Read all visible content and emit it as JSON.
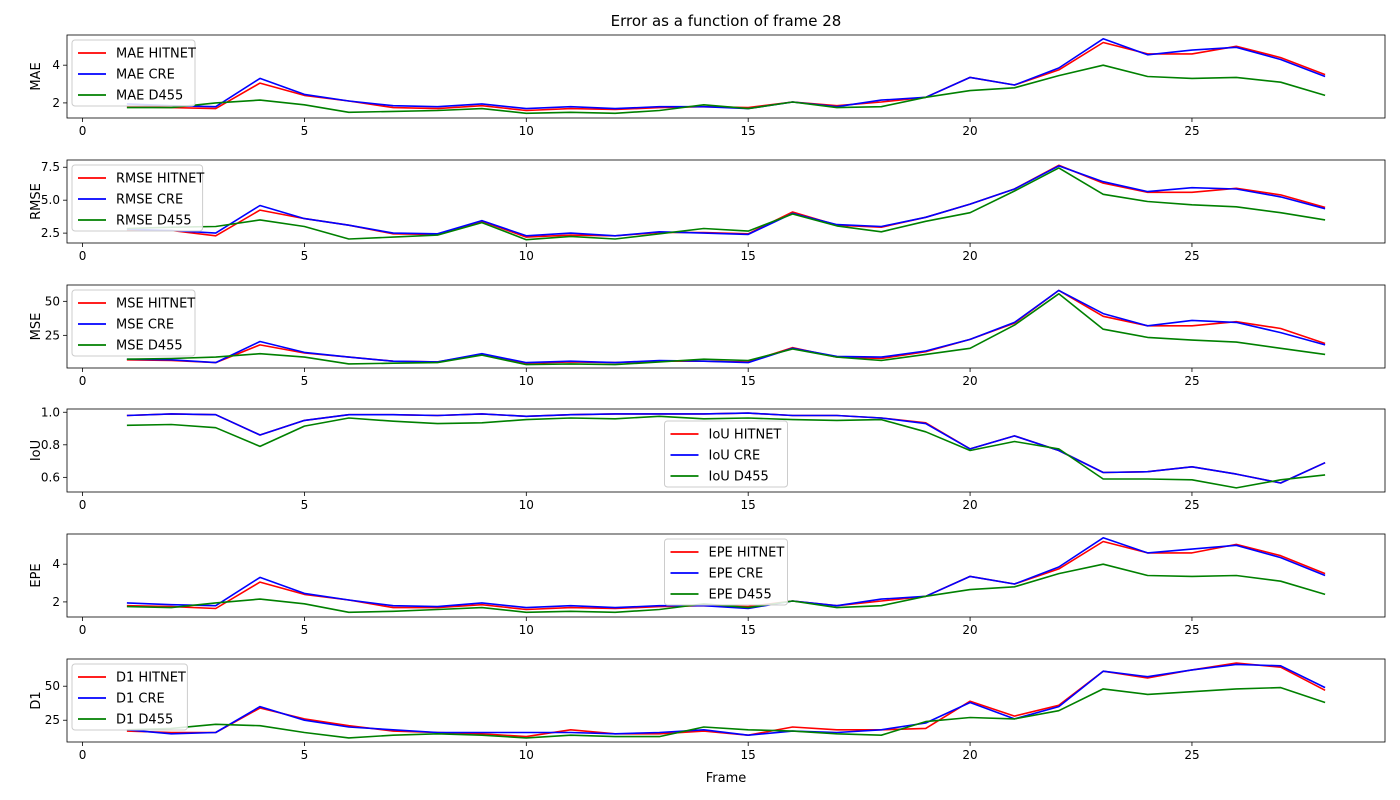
{
  "figure_title": "Error as a function of frame 28",
  "xlabel": "Frame",
  "colors": {
    "HITNET": "#ff0000",
    "CRE": "#0000ff",
    "D455": "#008000"
  },
  "chart_data": [
    {
      "type": "line",
      "ylabel": "MAE",
      "x": [
        1,
        2,
        3,
        4,
        5,
        6,
        7,
        8,
        9,
        10,
        11,
        12,
        13,
        14,
        15,
        16,
        17,
        18,
        19,
        20,
        21,
        22,
        23,
        24,
        25,
        26,
        27,
        28
      ],
      "xlim": [
        -0.35,
        29.35
      ],
      "ylim": [
        1.2,
        5.6
      ],
      "yticks": [
        2,
        4
      ],
      "xticks": [
        0,
        5,
        10,
        15,
        20,
        25
      ],
      "legend": "upper-left",
      "series": [
        {
          "name": "MAE HITNET",
          "color": "#ff0000",
          "values": [
            1.8,
            1.75,
            1.7,
            3.05,
            2.4,
            2.1,
            1.75,
            1.7,
            1.85,
            1.6,
            1.7,
            1.65,
            1.75,
            1.8,
            1.75,
            2.05,
            1.85,
            2.05,
            2.3,
            3.35,
            2.95,
            3.75,
            5.2,
            4.6,
            4.6,
            5.0,
            4.4,
            3.5
          ]
        },
        {
          "name": "MAE CRE",
          "color": "#0000ff",
          "values": [
            1.95,
            1.85,
            1.8,
            3.3,
            2.45,
            2.1,
            1.85,
            1.8,
            1.95,
            1.7,
            1.8,
            1.7,
            1.8,
            1.8,
            1.7,
            2.05,
            1.8,
            2.15,
            2.3,
            3.35,
            2.95,
            3.85,
            5.4,
            4.55,
            4.8,
            4.95,
            4.3,
            3.4
          ]
        },
        {
          "name": "MAE D455",
          "color": "#008000",
          "values": [
            1.75,
            1.75,
            2.0,
            2.15,
            1.9,
            1.5,
            1.55,
            1.6,
            1.7,
            1.45,
            1.5,
            1.45,
            1.6,
            1.9,
            1.7,
            2.05,
            1.75,
            1.8,
            2.3,
            2.65,
            2.8,
            3.45,
            4.0,
            3.4,
            3.3,
            3.35,
            3.1,
            2.4
          ]
        }
      ]
    },
    {
      "type": "line",
      "ylabel": "RMSE",
      "x": [
        1,
        2,
        3,
        4,
        5,
        6,
        7,
        8,
        9,
        10,
        11,
        12,
        13,
        14,
        15,
        16,
        17,
        18,
        19,
        20,
        21,
        22,
        23,
        24,
        25,
        26,
        27,
        28
      ],
      "xlim": [
        -0.35,
        29.35
      ],
      "ylim": [
        1.75,
        8.05
      ],
      "yticks": [
        2.5,
        5.0,
        7.5
      ],
      "ytick_labels": [
        "2.5",
        "5.0",
        "7.5"
      ],
      "xticks": [
        0,
        5,
        10,
        15,
        20,
        25
      ],
      "legend": "upper-left",
      "series": [
        {
          "name": "RMSE HITNET",
          "color": "#ff0000",
          "values": [
            2.7,
            2.7,
            2.3,
            4.25,
            3.6,
            3.1,
            2.45,
            2.4,
            3.4,
            2.2,
            2.35,
            2.3,
            2.55,
            2.55,
            2.45,
            4.1,
            3.1,
            2.95,
            3.7,
            4.7,
            5.85,
            7.65,
            6.3,
            5.6,
            5.6,
            5.9,
            5.4,
            4.45
          ]
        },
        {
          "name": "RMSE CRE",
          "color": "#0000ff",
          "values": [
            2.8,
            2.7,
            2.5,
            4.6,
            3.6,
            3.1,
            2.5,
            2.45,
            3.45,
            2.3,
            2.5,
            2.3,
            2.6,
            2.5,
            2.4,
            4.0,
            3.15,
            3.0,
            3.7,
            4.7,
            5.85,
            7.6,
            6.4,
            5.65,
            5.95,
            5.85,
            5.25,
            4.35
          ]
        },
        {
          "name": "RMSE D455",
          "color": "#008000",
          "values": [
            2.85,
            2.95,
            3.0,
            3.5,
            3.0,
            2.05,
            2.2,
            2.35,
            3.3,
            2.0,
            2.25,
            2.05,
            2.45,
            2.85,
            2.65,
            3.95,
            3.05,
            2.6,
            3.4,
            4.05,
            5.7,
            7.45,
            5.45,
            4.9,
            4.65,
            4.5,
            4.05,
            3.5
          ]
        }
      ]
    },
    {
      "type": "line",
      "ylabel": "MSE",
      "x": [
        1,
        2,
        3,
        4,
        5,
        6,
        7,
        8,
        9,
        10,
        11,
        12,
        13,
        14,
        15,
        16,
        17,
        18,
        19,
        20,
        21,
        22,
        23,
        24,
        25,
        26,
        27,
        28
      ],
      "xlim": [
        -0.35,
        29.35
      ],
      "ylim": [
        1,
        62
      ],
      "yticks": [
        25,
        50
      ],
      "xticks": [
        0,
        5,
        10,
        15,
        20,
        25
      ],
      "legend": "upper-left",
      "series": [
        {
          "name": "MSE HITNET",
          "color": "#ff0000",
          "values": [
            7,
            6.5,
            5,
            18,
            12,
            9,
            6,
            5.5,
            11,
            4.5,
            5.5,
            5,
            6,
            6,
            5.5,
            16,
            9,
            8,
            13,
            22,
            34,
            58,
            39,
            32,
            32,
            35,
            30,
            19
          ]
        },
        {
          "name": "MSE CRE",
          "color": "#0000ff",
          "values": [
            7.5,
            7,
            5,
            20.5,
            12.5,
            9,
            6,
            5.5,
            11.5,
            5,
            6,
            5,
            6.5,
            6,
            5,
            15.5,
            9.5,
            9,
            13.5,
            22,
            34.5,
            58,
            41,
            32,
            36,
            34.5,
            27,
            18
          ]
        },
        {
          "name": "MSE D455",
          "color": "#008000",
          "values": [
            7.5,
            8,
            9,
            11.5,
            9,
            4,
            4.5,
            5,
            10.5,
            3.5,
            4,
            3.5,
            5.5,
            7.5,
            6.5,
            15,
            9,
            6.5,
            11,
            15.5,
            32.5,
            55.5,
            29.5,
            23.5,
            21.5,
            20,
            15.5,
            11
          ]
        }
      ]
    },
    {
      "type": "line",
      "ylabel": "IoU",
      "x": [
        1,
        2,
        3,
        4,
        5,
        6,
        7,
        8,
        9,
        10,
        11,
        12,
        13,
        14,
        15,
        16,
        17,
        18,
        19,
        20,
        21,
        22,
        23,
        24,
        25,
        26,
        27,
        28
      ],
      "xlim": [
        -0.35,
        29.35
      ],
      "ylim": [
        0.51,
        1.02
      ],
      "yticks": [
        0.6,
        0.8,
        1.0
      ],
      "ytick_labels": [
        "0.6",
        "0.8",
        "1.0"
      ],
      "xticks": [
        0,
        5,
        10,
        15,
        20,
        25
      ],
      "legend": "lower-center",
      "series": [
        {
          "name": "IoU HITNET",
          "color": "#ff0000",
          "values": [
            0.98,
            0.99,
            0.985,
            0.86,
            0.95,
            0.985,
            0.985,
            0.98,
            0.99,
            0.975,
            0.985,
            0.99,
            0.99,
            0.99,
            0.995,
            0.98,
            0.98,
            0.965,
            0.935,
            0.775,
            0.855,
            0.765,
            0.63,
            0.635,
            0.665,
            0.62,
            0.565,
            0.69
          ]
        },
        {
          "name": "IoU CRE",
          "color": "#0000ff",
          "values": [
            0.98,
            0.99,
            0.985,
            0.86,
            0.95,
            0.985,
            0.985,
            0.98,
            0.99,
            0.975,
            0.985,
            0.99,
            0.99,
            0.99,
            0.995,
            0.98,
            0.98,
            0.965,
            0.93,
            0.775,
            0.855,
            0.765,
            0.63,
            0.635,
            0.665,
            0.62,
            0.565,
            0.69
          ]
        },
        {
          "name": "IoU D455",
          "color": "#008000",
          "values": [
            0.92,
            0.925,
            0.905,
            0.79,
            0.915,
            0.965,
            0.945,
            0.93,
            0.935,
            0.955,
            0.965,
            0.96,
            0.975,
            0.96,
            0.965,
            0.955,
            0.95,
            0.955,
            0.88,
            0.765,
            0.82,
            0.775,
            0.59,
            0.59,
            0.585,
            0.535,
            0.585,
            0.615
          ]
        }
      ]
    },
    {
      "type": "line",
      "ylabel": "EPE",
      "x": [
        1,
        2,
        3,
        4,
        5,
        6,
        7,
        8,
        9,
        10,
        11,
        12,
        13,
        14,
        15,
        16,
        17,
        18,
        19,
        20,
        21,
        22,
        23,
        24,
        25,
        26,
        27,
        28
      ],
      "xlim": [
        -0.35,
        29.35
      ],
      "ylim": [
        1.2,
        5.6
      ],
      "yticks": [
        2,
        4
      ],
      "xticks": [
        0,
        5,
        10,
        15,
        20,
        25
      ],
      "legend": "upper-center",
      "series": [
        {
          "name": "EPE HITNET",
          "color": "#ff0000",
          "values": [
            1.8,
            1.75,
            1.65,
            3.05,
            2.4,
            2.1,
            1.7,
            1.7,
            1.85,
            1.6,
            1.7,
            1.65,
            1.75,
            1.8,
            1.75,
            2.05,
            1.8,
            2.05,
            2.3,
            3.35,
            2.95,
            3.75,
            5.2,
            4.6,
            4.6,
            5.05,
            4.45,
            3.5
          ]
        },
        {
          "name": "EPE CRE",
          "color": "#0000ff",
          "values": [
            1.95,
            1.85,
            1.8,
            3.3,
            2.45,
            2.1,
            1.8,
            1.75,
            1.95,
            1.7,
            1.8,
            1.7,
            1.8,
            1.8,
            1.65,
            2.05,
            1.8,
            2.15,
            2.3,
            3.35,
            2.95,
            3.85,
            5.4,
            4.6,
            4.8,
            5.0,
            4.35,
            3.4
          ]
        },
        {
          "name": "EPE D455",
          "color": "#008000",
          "values": [
            1.75,
            1.7,
            1.95,
            2.15,
            1.9,
            1.45,
            1.5,
            1.6,
            1.7,
            1.45,
            1.5,
            1.45,
            1.6,
            1.9,
            1.7,
            2.05,
            1.7,
            1.8,
            2.3,
            2.65,
            2.8,
            3.5,
            4.0,
            3.4,
            3.35,
            3.4,
            3.1,
            2.4
          ]
        }
      ]
    },
    {
      "type": "line",
      "ylabel": "D1",
      "x": [
        1,
        2,
        3,
        4,
        5,
        6,
        7,
        8,
        9,
        10,
        11,
        12,
        13,
        14,
        15,
        16,
        17,
        18,
        19,
        20,
        21,
        22,
        23,
        24,
        25,
        26,
        27,
        28
      ],
      "xlim": [
        -0.35,
        29.35
      ],
      "ylim": [
        9,
        70
      ],
      "yticks": [
        25,
        50
      ],
      "xticks": [
        0,
        5,
        10,
        15,
        20,
        25
      ],
      "legend": "upper-left",
      "series": [
        {
          "name": "D1 HITNET",
          "color": "#ff0000",
          "values": [
            17,
            16,
            16,
            34,
            26,
            21,
            17,
            16,
            15,
            13,
            18,
            15,
            15,
            17,
            14,
            20,
            18,
            18,
            19,
            39,
            28,
            36,
            61,
            56,
            62,
            67,
            64,
            47
          ]
        },
        {
          "name": "D1 CRE",
          "color": "#0000ff",
          "values": [
            18,
            15,
            16,
            35,
            25,
            20,
            18,
            16,
            16,
            16,
            16,
            15,
            16,
            18,
            14,
            17,
            16,
            18,
            23,
            38,
            26,
            35,
            61,
            57,
            62,
            66,
            65,
            49
          ]
        },
        {
          "name": "D1 D455",
          "color": "#008000",
          "values": [
            18,
            19,
            22,
            21,
            16,
            12,
            14,
            15,
            14,
            12,
            14,
            13,
            13,
            20,
            18,
            17,
            15,
            14,
            24,
            27,
            26,
            32,
            48,
            44,
            46,
            48,
            49,
            38
          ]
        }
      ]
    }
  ]
}
